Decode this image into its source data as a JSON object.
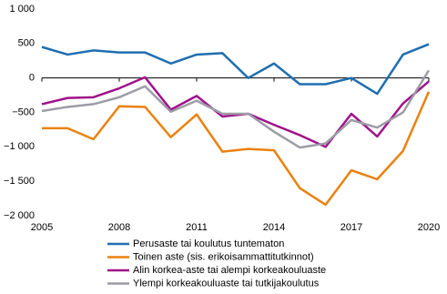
{
  "chart_data": {
    "type": "line",
    "x": [
      2005,
      2006,
      2007,
      2008,
      2009,
      2010,
      2011,
      2012,
      2013,
      2014,
      2015,
      2016,
      2017,
      2018,
      2019,
      2020
    ],
    "series": [
      {
        "name": "Perusaste tai koulutus tuntematon",
        "color": "#1f6eb0",
        "values": [
          450,
          340,
          400,
          370,
          370,
          210,
          340,
          360,
          0,
          210,
          -90,
          -90,
          0,
          -230,
          340,
          490
        ]
      },
      {
        "name": "Toinen aste (sis. erikoisammattitutkinnot)",
        "color": "#ea820f",
        "values": [
          -730,
          -730,
          -890,
          -410,
          -420,
          -860,
          -530,
          -1070,
          -1030,
          -1050,
          -1600,
          -1840,
          -1340,
          -1470,
          -1060,
          -200
        ]
      },
      {
        "name": "Alin korkea-aste tai alempi korkeakouluaste",
        "color": "#a0128a",
        "values": [
          -380,
          -290,
          -280,
          -150,
          10,
          -460,
          -260,
          -560,
          -520,
          -680,
          -830,
          -1000,
          -520,
          -850,
          -370,
          -50
        ]
      },
      {
        "name": "Ylempi korkeakouluaste tai tutkijakoulutus",
        "color": "#9c9ca6",
        "values": [
          -480,
          -420,
          -380,
          -280,
          -120,
          -490,
          -330,
          -520,
          -520,
          -780,
          -1010,
          -950,
          -610,
          -720,
          -500,
          110
        ]
      }
    ],
    "xlim": [
      2005,
      2020
    ],
    "xticks": [
      2005,
      2008,
      2011,
      2014,
      2017,
      2020
    ],
    "ylim": [
      -2000,
      1000
    ],
    "yticks": [
      {
        "value": 1000,
        "label": "1 000"
      },
      500,
      0,
      {
        "value": -500,
        "label": "−500"
      },
      {
        "value": -1000,
        "label": "−1 000"
      },
      {
        "value": -1500,
        "label": "−1 500"
      },
      {
        "value": -2000,
        "label": "−2 000"
      }
    ],
    "grid": false
  }
}
